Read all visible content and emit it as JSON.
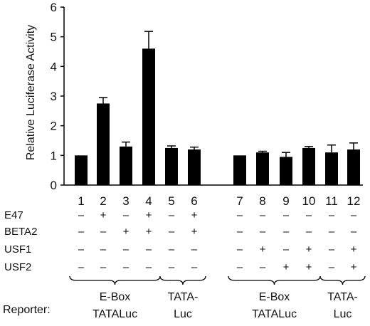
{
  "chart_data": {
    "type": "bar",
    "ylabel": "Relative Luciferase Activity",
    "ylim": [
      0,
      6
    ],
    "yticks": [
      "0",
      "1",
      "2",
      "3",
      "4",
      "5",
      "6"
    ],
    "grid": false,
    "categories": [
      "1",
      "2",
      "3",
      "4",
      "5",
      "6",
      "7",
      "8",
      "9",
      "10",
      "11",
      "12"
    ],
    "values": [
      1.0,
      2.75,
      1.3,
      4.6,
      1.25,
      1.2,
      1.0,
      1.1,
      0.95,
      1.25,
      1.1,
      1.2
    ],
    "errors": [
      0.0,
      0.2,
      0.15,
      0.58,
      0.07,
      0.08,
      0.0,
      0.04,
      0.15,
      0.05,
      0.25,
      0.22
    ],
    "bar_color": "#000000",
    "conditions": [
      {
        "label": "E47",
        "marks": [
          "–",
          "+",
          "–",
          "+",
          "–",
          "+",
          "–",
          "–",
          "–",
          "–",
          "–",
          "–"
        ]
      },
      {
        "label": "BETA2",
        "marks": [
          "–",
          "–",
          "+",
          "+",
          "–",
          "+",
          "–",
          "–",
          "–",
          "–",
          "–",
          "–"
        ]
      },
      {
        "label": "USF1",
        "marks": [
          "–",
          "–",
          "–",
          "–",
          "–",
          "–",
          "–",
          "+",
          "–",
          "+",
          "–",
          "+"
        ]
      },
      {
        "label": "USF2",
        "marks": [
          "–",
          "–",
          "–",
          "–",
          "–",
          "–",
          "–",
          "–",
          "+",
          "+",
          "–",
          "+"
        ]
      }
    ],
    "reporter_label": "Reporter:",
    "reporter_groups": [
      {
        "from": 1,
        "to": 4,
        "line1": "E-Box",
        "line2": "TATALuc"
      },
      {
        "from": 5,
        "to": 6,
        "line1": "TATA-",
        "line2": "Luc"
      },
      {
        "from": 7,
        "to": 10,
        "line1": "E-Box",
        "line2": "TATALuc"
      },
      {
        "from": 11,
        "to": 12,
        "line1": "TATA-",
        "line2": "Luc"
      }
    ]
  }
}
